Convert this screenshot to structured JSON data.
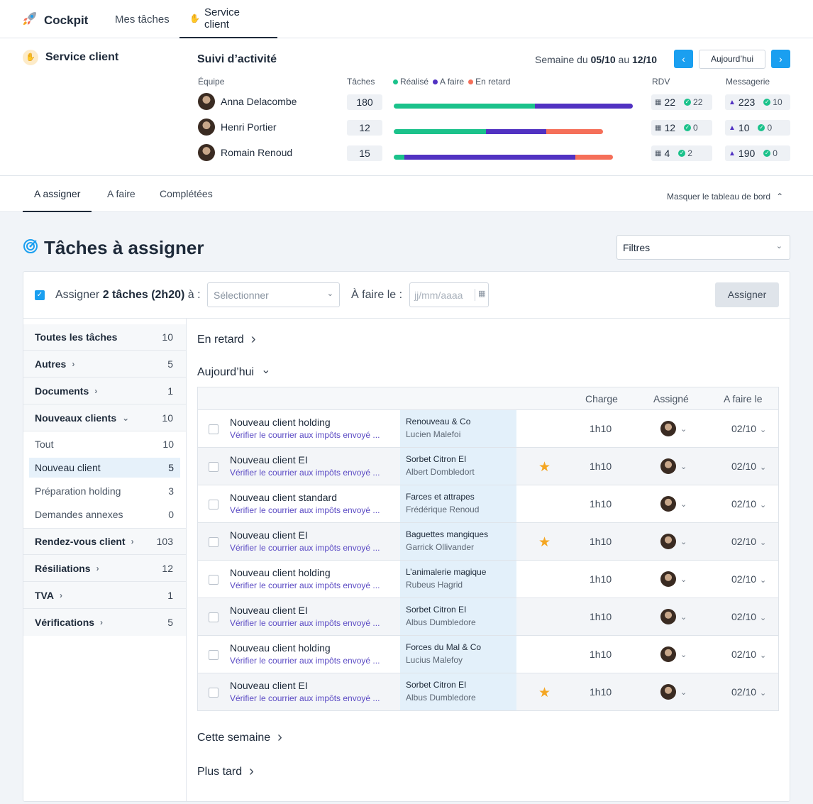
{
  "nav": {
    "brand": "Cockpit",
    "tabs": [
      "Mes tâches",
      "Service client"
    ]
  },
  "dashboard": {
    "service_title": "Service client",
    "activity_title": "Suivi d’activité",
    "week_prefix": "Semaine du",
    "week_from": "05/10",
    "week_mid": "au",
    "week_to": "12/10",
    "today_label": "Aujourd’hui",
    "col_team": "Équipe",
    "col_tasks": "Tâches",
    "col_rdv": "RDV",
    "col_msg": "Messagerie",
    "legend": [
      "Réalisé",
      "A faire",
      "En retard"
    ],
    "colors": {
      "done": "#1bc28b",
      "todo": "#5132c2",
      "late": "#f56f59"
    },
    "members": [
      {
        "name": "Anna Delacombe",
        "tasks": "180",
        "done": 0.59,
        "todo": 0.41,
        "late": 0,
        "rdv": "22",
        "rdv_ok": "22",
        "msg": "223",
        "msg_ok": "10"
      },
      {
        "name": "Henri Portier",
        "tasks": "12",
        "done": 0.44,
        "todo": 0.29,
        "late": 0.27,
        "rdv": "12",
        "rdv_ok": "0",
        "msg": "10",
        "msg_ok": "0"
      },
      {
        "name": "Romain Renoud",
        "tasks": "15",
        "done": 0.05,
        "todo": 0.78,
        "late": 0.17,
        "rdv": "4",
        "rdv_ok": "2",
        "msg": "190",
        "msg_ok": "0"
      }
    ]
  },
  "subtabs": [
    "A assigner",
    "A faire",
    "Complétées"
  ],
  "hide_dashboard": "Masquer le tableau de bord",
  "page_title": "Tâches à assigner",
  "filters": "Filtres",
  "assign": {
    "prefix": "Assigner",
    "count": "2 tâches (2h20)",
    "suffix": "à :",
    "select_placeholder": "Sélectionner",
    "due_label": "À faire le :",
    "date_placeholder": "jj/mm/aaaa",
    "button": "Assigner"
  },
  "sidebar": {
    "items": [
      {
        "label": "Toutes les tâches",
        "count": "10"
      },
      {
        "label": "Autres",
        "count": "5"
      },
      {
        "label": "Documents",
        "count": "1"
      },
      {
        "label": "Nouveaux clients",
        "count": "10"
      },
      {
        "label": "Rendez-vous client",
        "count": "103"
      },
      {
        "label": "Résiliations",
        "count": "12"
      },
      {
        "label": "TVA",
        "count": "1"
      },
      {
        "label": "Vérifications",
        "count": "5"
      }
    ],
    "subitems": [
      {
        "label": "Tout",
        "count": "10"
      },
      {
        "label": "Nouveau client",
        "count": "5"
      },
      {
        "label": "Préparation holding",
        "count": "3"
      },
      {
        "label": "Demandes annexes",
        "count": "0"
      }
    ]
  },
  "groups": {
    "late": "En retard",
    "today": "Aujourd’hui",
    "week": "Cette semaine",
    "later": "Plus tard"
  },
  "table": {
    "headers": {
      "charge": "Charge",
      "assignee": "Assigné",
      "due": "A faire le"
    },
    "rows": [
      {
        "title": "Nouveau client holding",
        "desc": "Vérifier le courrier aux impôts envoyé ...",
        "company": "Renouveau & Co",
        "contact": "Lucien Malefoi",
        "star": false,
        "charge": "1h10",
        "due": "02/10"
      },
      {
        "title": "Nouveau client EI",
        "desc": "Vérifier le courrier aux impôts envoyé ...",
        "company": "Sorbet Citron EI",
        "contact": "Albert Dombledort",
        "star": true,
        "charge": "1h10",
        "due": "02/10"
      },
      {
        "title": "Nouveau client standard",
        "desc": "Vérifier le courrier aux impôts envoyé ...",
        "company": "Farces et attrapes",
        "contact": "Frédérique Renoud",
        "star": false,
        "charge": "1h10",
        "due": "02/10"
      },
      {
        "title": "Nouveau client EI",
        "desc": "Vérifier le courrier aux impôts envoyé ...",
        "company": "Baguettes mangiques",
        "contact": "Garrick Ollivander",
        "star": true,
        "charge": "1h10",
        "due": "02/10"
      },
      {
        "title": "Nouveau client holding",
        "desc": "Vérifier le courrier aux impôts envoyé ...",
        "company": "L’animalerie magique",
        "contact": "Rubeus Hagrid",
        "star": false,
        "charge": "1h10",
        "due": "02/10"
      },
      {
        "title": "Nouveau client EI",
        "desc": "Vérifier le courrier aux impôts envoyé ...",
        "company": "Sorbet Citron EI",
        "contact": "Albus Dumbledore",
        "star": false,
        "charge": "1h10",
        "due": "02/10"
      },
      {
        "title": "Nouveau client holding",
        "desc": "Vérifier le courrier aux impôts envoyé ...",
        "company": "Forces du Mal & Co",
        "contact": "Lucius Malefoy",
        "star": false,
        "charge": "1h10",
        "due": "02/10"
      },
      {
        "title": "Nouveau client EI",
        "desc": "Vérifier le courrier aux impôts envoyé ...",
        "company": "Sorbet Citron EI",
        "contact": "Albus Dumbledore",
        "star": true,
        "charge": "1h10",
        "due": "02/10"
      }
    ]
  }
}
